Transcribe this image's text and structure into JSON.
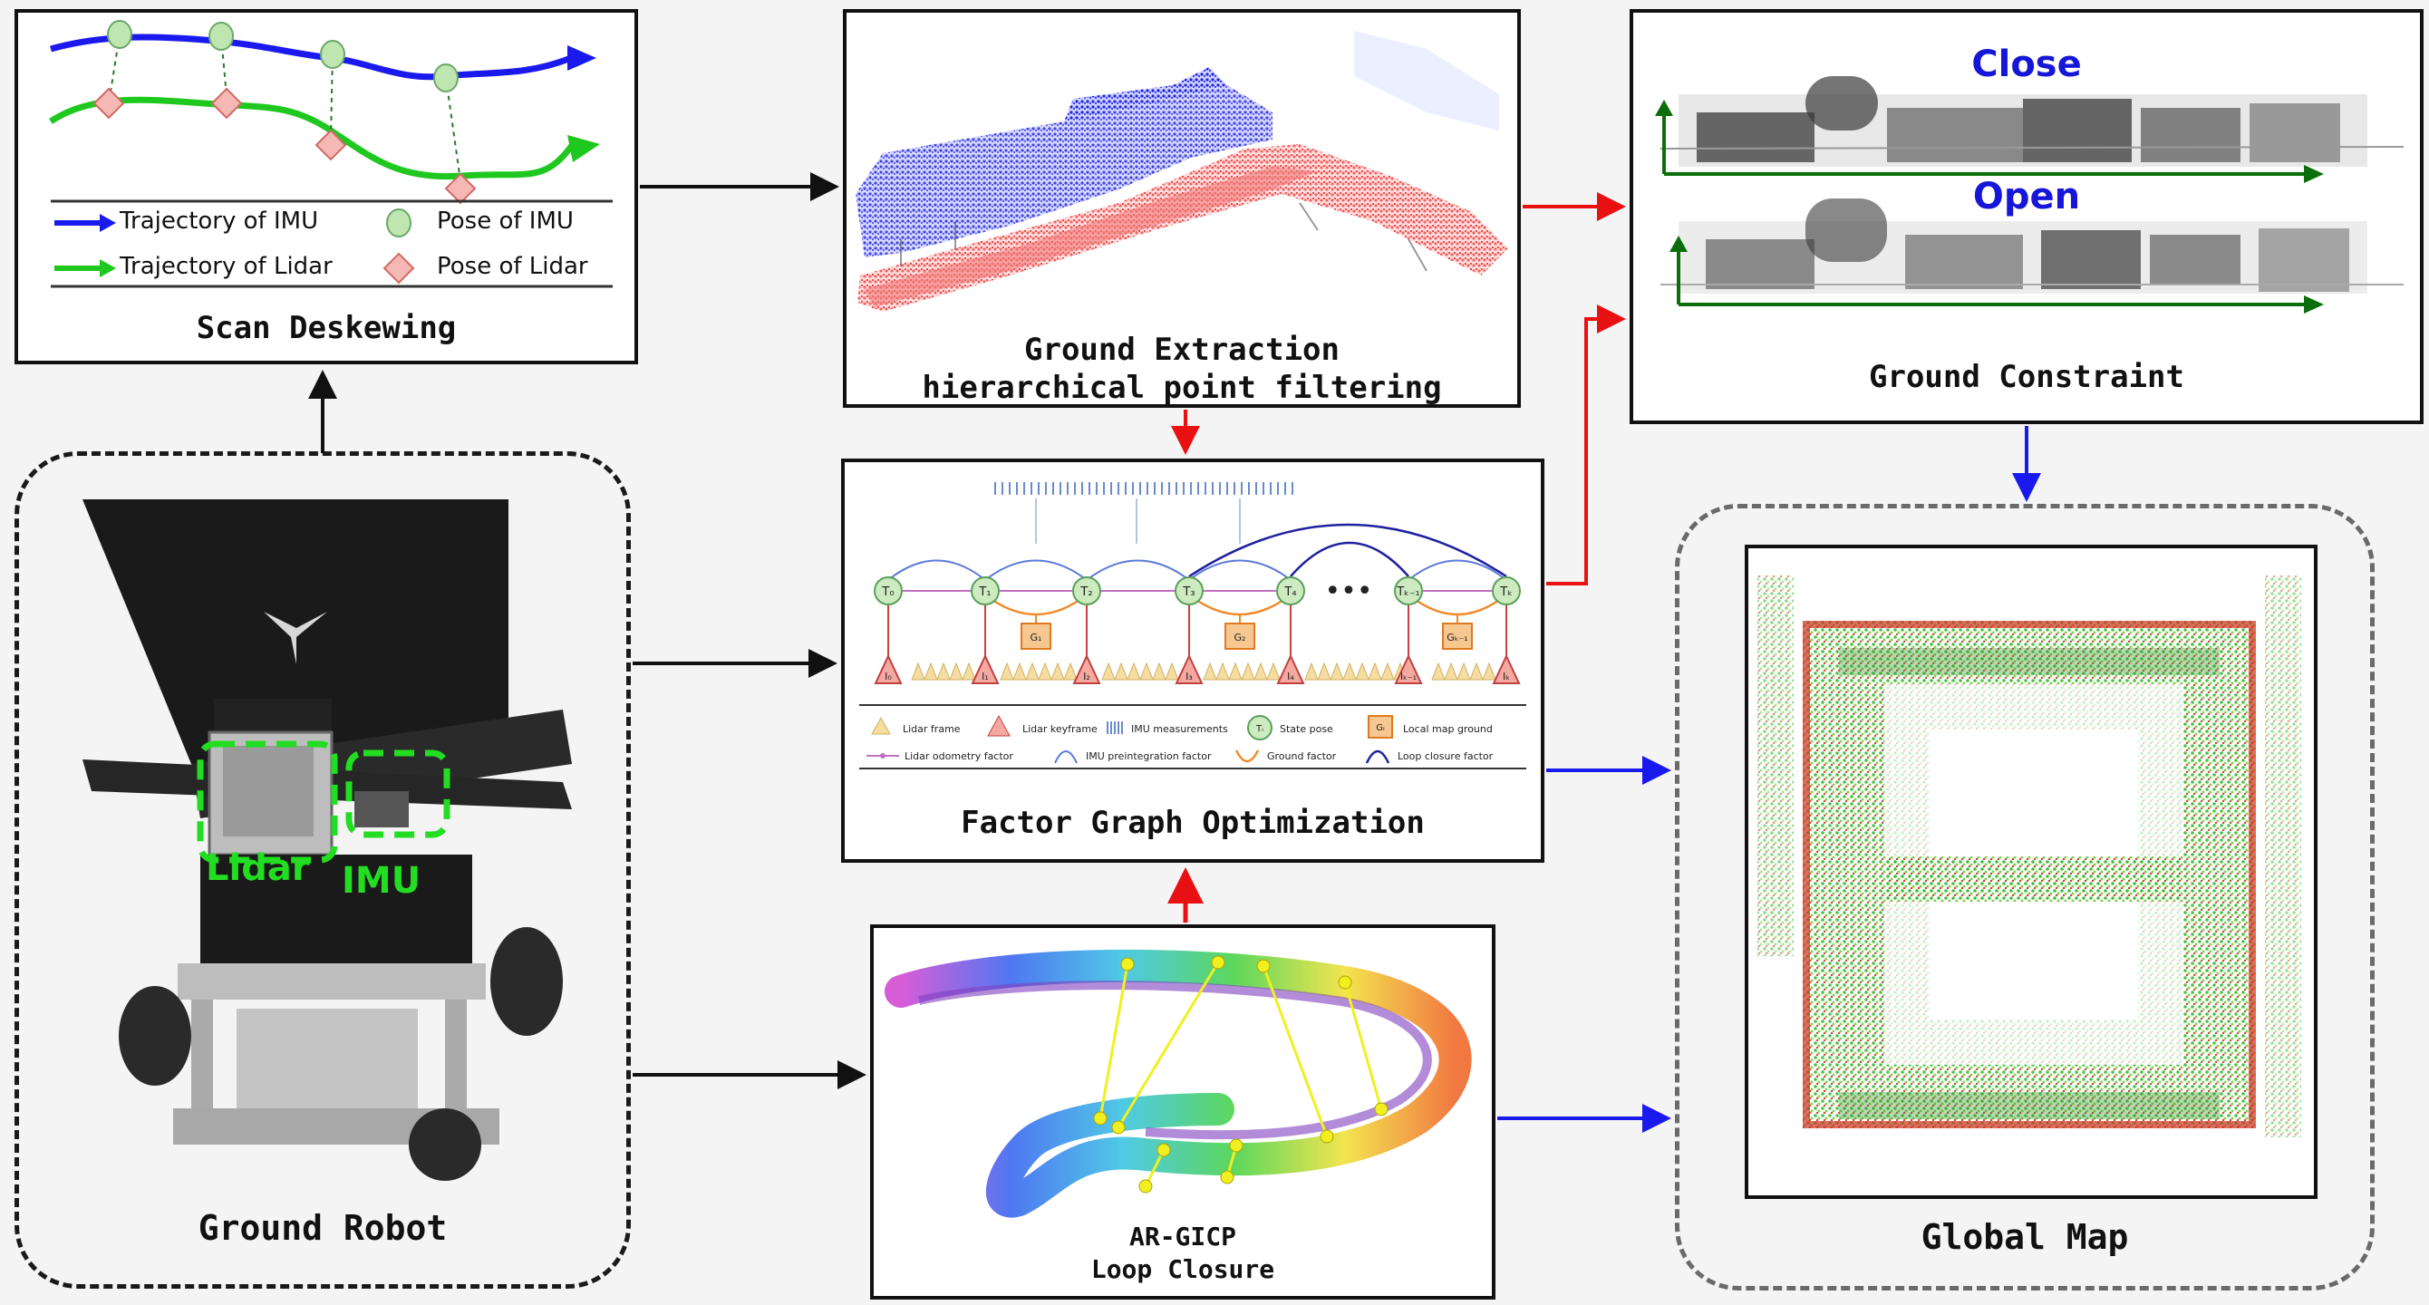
{
  "scan_deskewing": {
    "title": "Scan Deskewing",
    "legend": {
      "imu_trajectory": "Trajectory of IMU",
      "imu_pose": "Pose of IMU",
      "lidar_trajectory": "Trajectory of Lidar",
      "lidar_pose": "Pose of Lidar"
    }
  },
  "ground_extraction": {
    "title_line1": "Ground Extraction",
    "title_line2": "hierarchical point filtering"
  },
  "ground_constraint": {
    "title": "Ground Constraint",
    "close_label": "Close",
    "open_label": "Open"
  },
  "factor_graph": {
    "title": "Factor Graph Optimization",
    "nodes": [
      "T₀",
      "T₁",
      "T₂",
      "T₃",
      "T₄",
      "Tₖ₋₁",
      "Tₖ"
    ],
    "lidar_nodes": [
      "I₀",
      "I₁",
      "I₂",
      "I₃",
      "I₄",
      "Iₖ₋₁",
      "Iₖ"
    ],
    "ground_nodes": [
      "G₁",
      "G₂",
      "Gₖ₋₁"
    ],
    "ellipsis": "•••",
    "legend": {
      "lidar_frame": "Lidar frame",
      "lidar_keyframe": "Lidar keyframe",
      "imu_measurements": "IMU measurements",
      "state_pose": "State pose",
      "state_pose_symbol": "Tᵢ",
      "local_map_ground": "Local map ground",
      "local_map_symbol": "Gᵢ",
      "lidar_odometry_factor": "Lidar odometry factor",
      "imu_preintegration_factor": "IMU preintegration factor",
      "ground_factor": "Ground factor",
      "loop_closure_factor": "Loop closure factor"
    }
  },
  "ground_robot": {
    "title": "Ground Robot",
    "lidar_label": "Lidar",
    "imu_label": "IMU"
  },
  "loop_closure": {
    "title_line1": "AR-GICP",
    "title_line2": "Loop Closure"
  },
  "global_map": {
    "title": "Global Map"
  },
  "colors": {
    "imu_blue": "#1a1aee",
    "lidar_green": "#1ec81e",
    "arrow_red": "#e81010",
    "arrow_blue": "#1a1aee",
    "close_label": "#1616d8"
  }
}
